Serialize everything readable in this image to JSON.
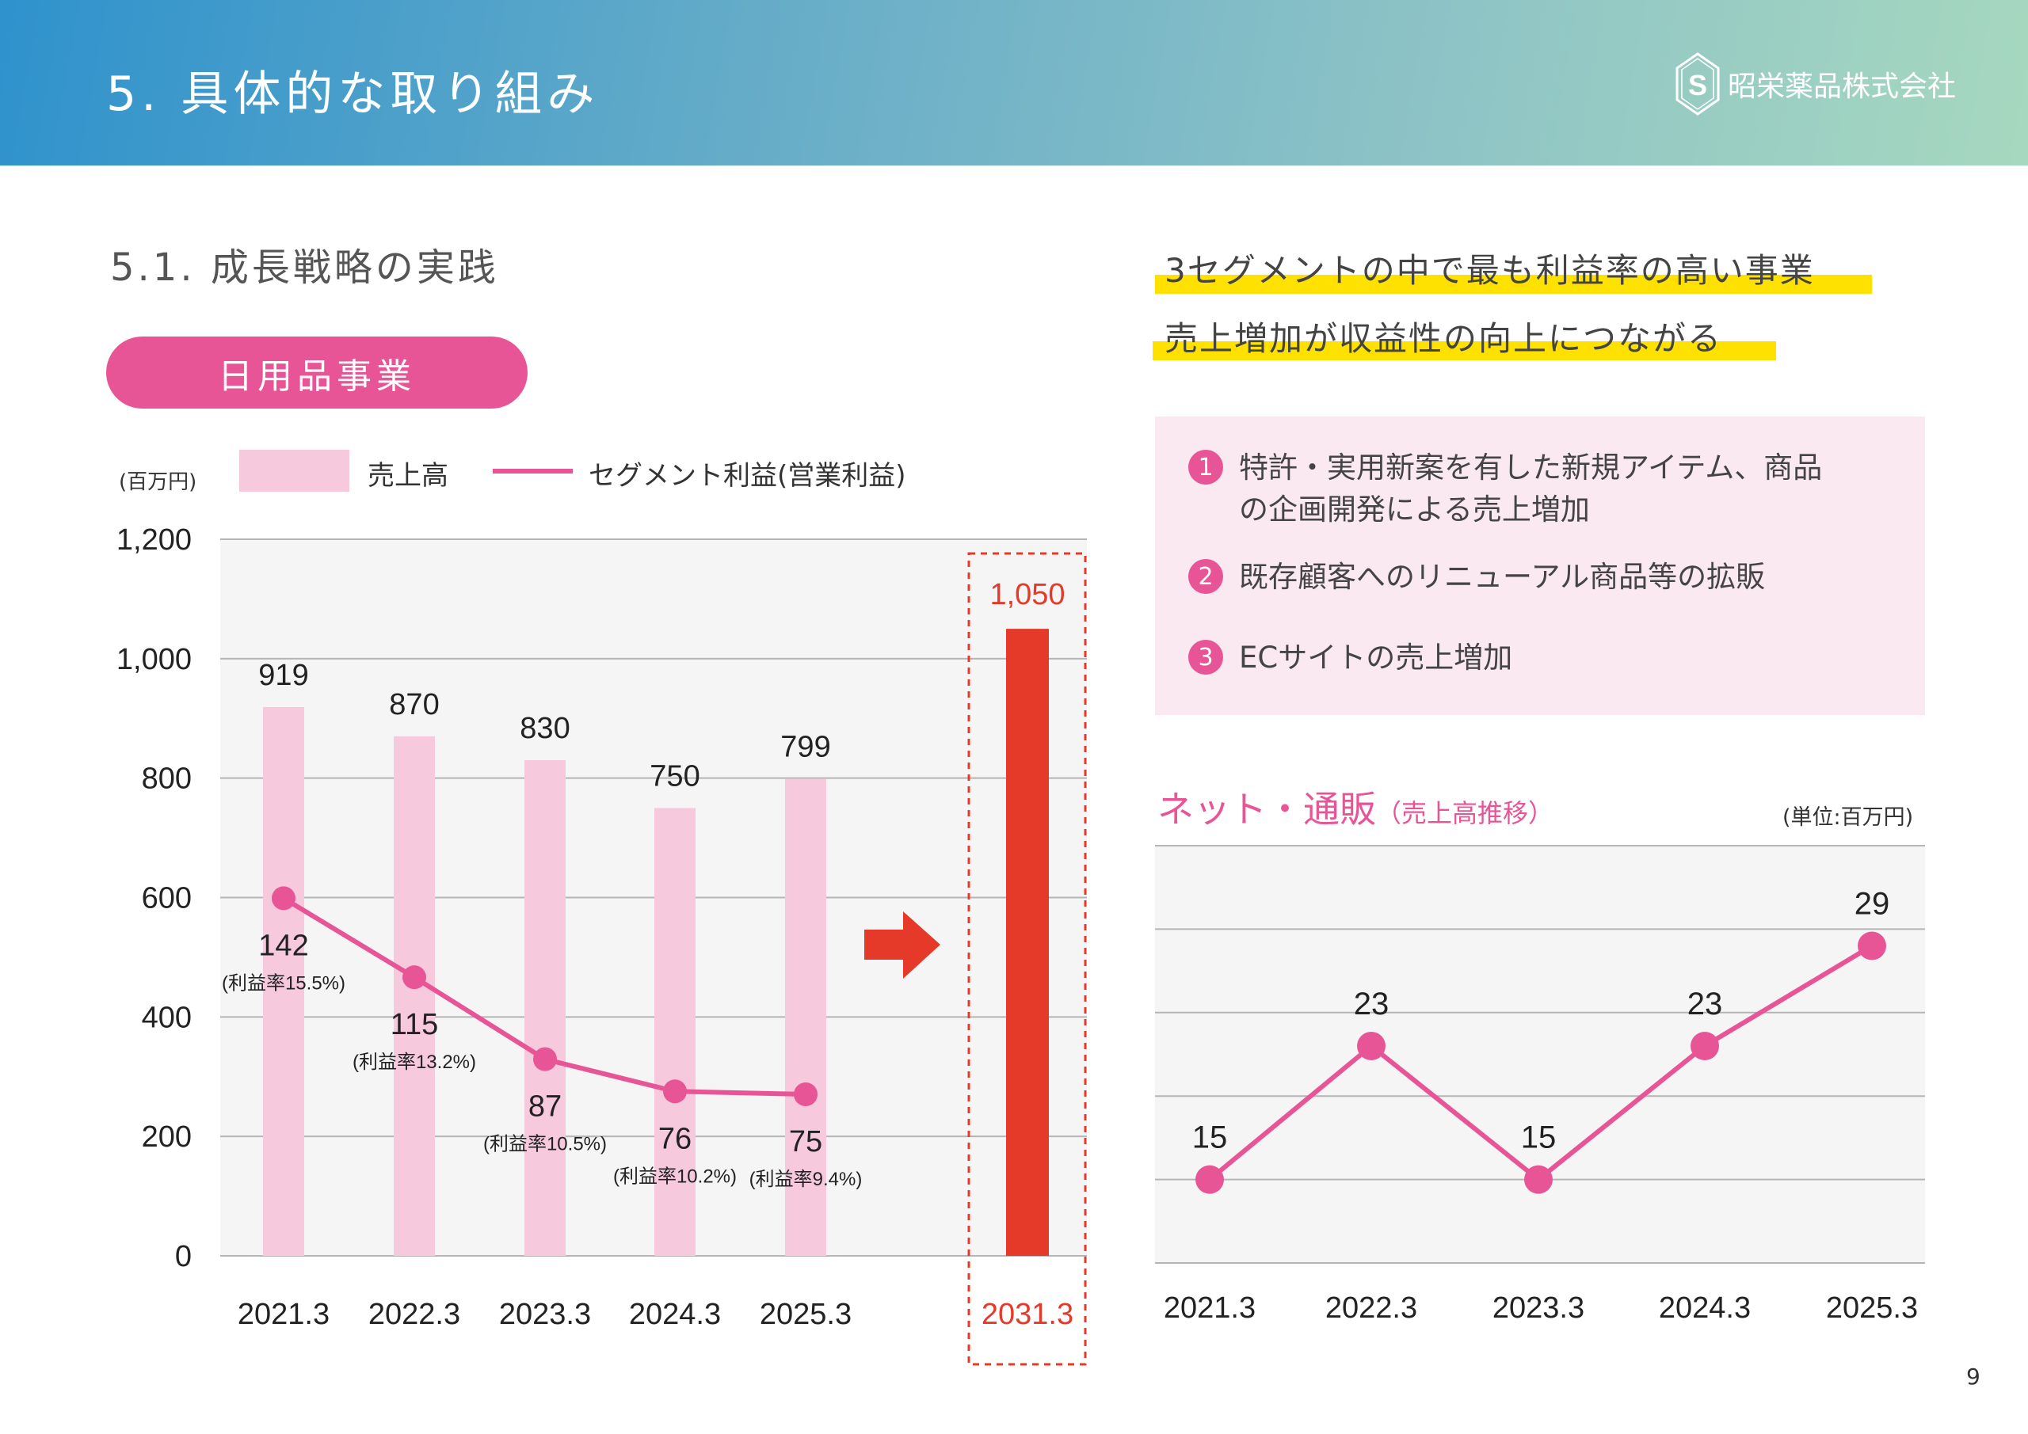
{
  "header": {
    "title": "5. 具体的な取り組み",
    "company": "昭栄薬品株式会社",
    "logo_letters": "SS"
  },
  "subtitle": "5.1. 成長戦略の実践",
  "segment_label": "日用品事業",
  "highlights": [
    "3セグメントの中で最も利益率の高い事業",
    "売上増加が収益性の向上につながる"
  ],
  "points": [
    {
      "num": "1",
      "line1": "特許・実用新案を有した新規アイテム、商品",
      "line2": "の企画開発による売上増加"
    },
    {
      "num": "2",
      "line1": "既存顧客へのリニューアル商品等の拡販",
      "line2": ""
    },
    {
      "num": "3",
      "line1": "ECサイトの売上増加",
      "line2": ""
    }
  ],
  "net_title": {
    "main": "ネット・通販",
    "sub": "（売上高推移）"
  },
  "page_number": "9",
  "colors": {
    "pink": "#e85597",
    "bar_pink": "#f7c9dd",
    "target_red": "#e53a2a",
    "highlight_yellow": "#ffe100",
    "plot_bg": "#f5f5f5"
  },
  "chart_data": [
    {
      "type": "bar",
      "unit_label": "(百万円)",
      "categories": [
        "2021.3",
        "2022.3",
        "2023.3",
        "2024.3",
        "2025.3",
        "2031.3"
      ],
      "series": [
        {
          "name": "売上高",
          "values": [
            919,
            870,
            830,
            750,
            799,
            1050
          ],
          "value_labels": [
            "919",
            "870",
            "830",
            "750",
            "799",
            "1,050"
          ]
        },
        {
          "name": "セグメント利益(営業利益)",
          "type": "line",
          "values": [
            142,
            115,
            87,
            76,
            75,
            null
          ],
          "rate_labels": [
            "(利益率15.5%)",
            "(利益率13.2%)",
            "(利益率10.5%)",
            "(利益率10.2%)",
            "(利益率9.4%)"
          ]
        }
      ],
      "highlighted_category": "2031.3",
      "ylim": [
        0,
        1200
      ],
      "yticks": [
        "0",
        "200",
        "400",
        "600",
        "800",
        "1,000",
        "1,200"
      ],
      "grid": true,
      "legend": "top"
    },
    {
      "type": "line",
      "unit_label": "(単位:百万円)",
      "categories": [
        "2021.3",
        "2022.3",
        "2023.3",
        "2024.3",
        "2025.3"
      ],
      "values": [
        15,
        23,
        15,
        23,
        29
      ],
      "ylim": [
        10,
        35
      ],
      "grid": true
    }
  ]
}
